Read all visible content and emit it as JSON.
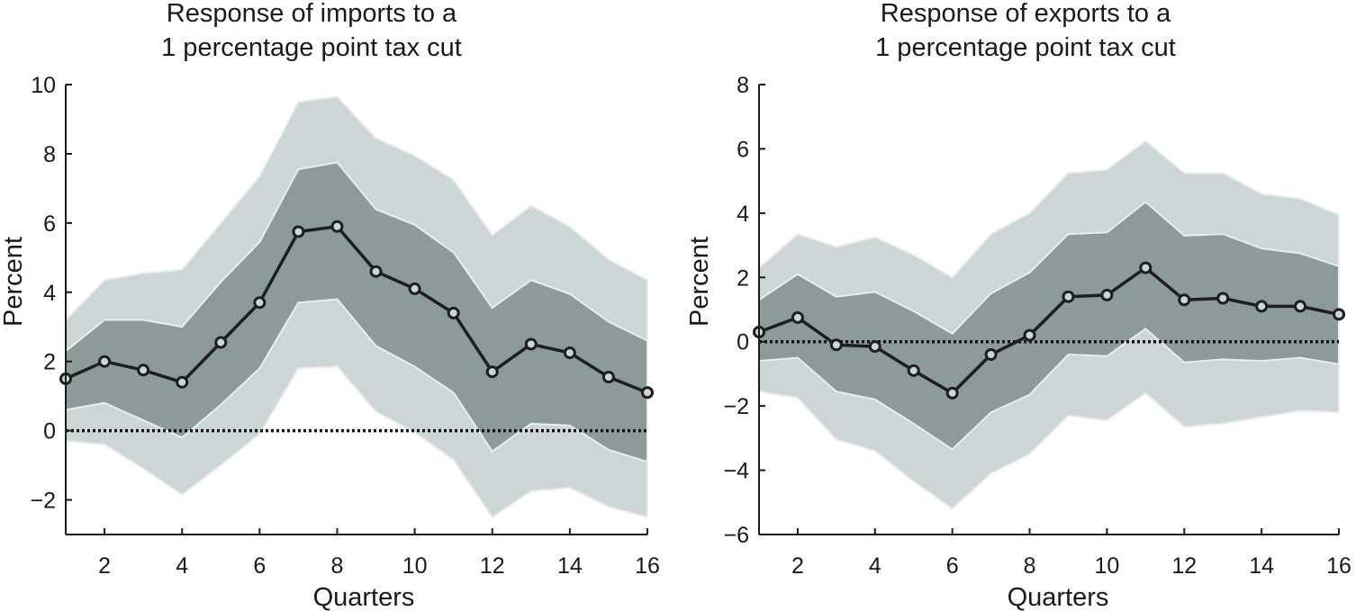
{
  "chart_data": [
    {
      "type": "line",
      "title_lines": [
        "Response of imports to a",
        "1 percentage point tax cut"
      ],
      "xlabel": "Quarters",
      "ylabel": "Percent",
      "xlim": [
        1,
        16
      ],
      "ylim": [
        -3,
        10
      ],
      "x_ticks": [
        2,
        4,
        6,
        8,
        10,
        12,
        14,
        16
      ],
      "x_tick_labels": [
        "2",
        "4",
        "6",
        "8",
        "10",
        "12",
        "14",
        "16"
      ],
      "y_ticks": [
        -2,
        0,
        2,
        4,
        6,
        8,
        10
      ],
      "y_tick_labels": [
        "−2",
        "0",
        "2",
        "4",
        "6",
        "8",
        "10"
      ],
      "x": [
        1,
        2,
        3,
        4,
        5,
        6,
        7,
        8,
        9,
        10,
        11,
        12,
        13,
        14,
        15,
        16
      ],
      "point_estimate": [
        1.5,
        2.0,
        1.75,
        1.4,
        2.55,
        3.7,
        5.75,
        5.9,
        4.6,
        4.1,
        3.4,
        1.7,
        2.5,
        2.25,
        1.55,
        1.1
      ],
      "inner_band": {
        "upper": [
          2.3,
          3.2,
          3.2,
          3.0,
          4.3,
          5.45,
          7.55,
          7.75,
          6.4,
          5.95,
          5.15,
          3.55,
          4.35,
          3.95,
          3.15,
          2.6
        ],
        "lower": [
          0.6,
          0.8,
          0.3,
          -0.2,
          0.75,
          1.8,
          3.7,
          3.8,
          2.45,
          1.85,
          1.1,
          -0.6,
          0.2,
          0.15,
          -0.55,
          -0.9
        ]
      },
      "outer_band": {
        "upper": [
          3.2,
          4.35,
          4.55,
          4.65,
          6.0,
          7.35,
          9.5,
          9.65,
          8.45,
          7.95,
          7.25,
          5.65,
          6.5,
          5.9,
          4.95,
          4.35
        ],
        "lower": [
          -0.3,
          -0.4,
          -1.1,
          -1.85,
          -1.0,
          -0.1,
          1.8,
          1.85,
          0.55,
          -0.05,
          -0.85,
          -2.5,
          -1.75,
          -1.65,
          -2.2,
          -2.5
        ]
      },
      "zero_line": 0,
      "colors": {
        "line": "#1e1e1e",
        "inner": "#8c9a9c",
        "outer": "#cdd6d7",
        "band_edge": "#e8eded",
        "axis": "#1a1a1a"
      }
    },
    {
      "type": "line",
      "title_lines": [
        "Response of exports to a",
        "1 percentage point tax cut"
      ],
      "xlabel": "Quarters",
      "ylabel": "Percent",
      "xlim": [
        1,
        16
      ],
      "ylim": [
        -6,
        8
      ],
      "x_ticks": [
        2,
        4,
        6,
        8,
        10,
        12,
        14,
        16
      ],
      "x_tick_labels": [
        "2",
        "4",
        "6",
        "8",
        "10",
        "12",
        "14",
        "16"
      ],
      "y_ticks": [
        -6,
        -4,
        -2,
        0,
        2,
        4,
        6,
        8
      ],
      "y_tick_labels": [
        "−6",
        "−4",
        "−2",
        "0",
        "2",
        "4",
        "6",
        "8"
      ],
      "x": [
        1,
        2,
        3,
        4,
        5,
        6,
        7,
        8,
        9,
        10,
        11,
        12,
        13,
        14,
        15,
        16
      ],
      "point_estimate": [
        0.3,
        0.75,
        -0.1,
        -0.15,
        -0.9,
        -1.6,
        -0.4,
        0.2,
        1.4,
        1.45,
        2.3,
        1.3,
        1.35,
        1.1,
        1.1,
        0.85
      ],
      "inner_band": {
        "upper": [
          1.3,
          2.1,
          1.4,
          1.55,
          0.95,
          0.25,
          1.5,
          2.15,
          3.35,
          3.4,
          4.35,
          3.3,
          3.35,
          2.9,
          2.75,
          2.35
        ],
        "lower": [
          -0.6,
          -0.5,
          -1.55,
          -1.8,
          -2.55,
          -3.35,
          -2.2,
          -1.65,
          -0.4,
          -0.45,
          0.4,
          -0.65,
          -0.55,
          -0.6,
          -0.5,
          -0.7
        ]
      },
      "outer_band": {
        "upper": [
          2.3,
          3.35,
          2.95,
          3.25,
          2.7,
          2.0,
          3.35,
          4.0,
          5.25,
          5.35,
          6.25,
          5.25,
          5.25,
          4.6,
          4.45,
          3.95
        ],
        "lower": [
          -1.55,
          -1.75,
          -3.05,
          -3.4,
          -4.35,
          -5.2,
          -4.1,
          -3.5,
          -2.3,
          -2.45,
          -1.6,
          -2.65,
          -2.55,
          -2.35,
          -2.15,
          -2.2
        ]
      },
      "zero_line": 0,
      "colors": {
        "line": "#1e1e1e",
        "inner": "#8c9a9c",
        "outer": "#cdd6d7",
        "band_edge": "#e8eded",
        "axis": "#1a1a1a"
      }
    }
  ]
}
